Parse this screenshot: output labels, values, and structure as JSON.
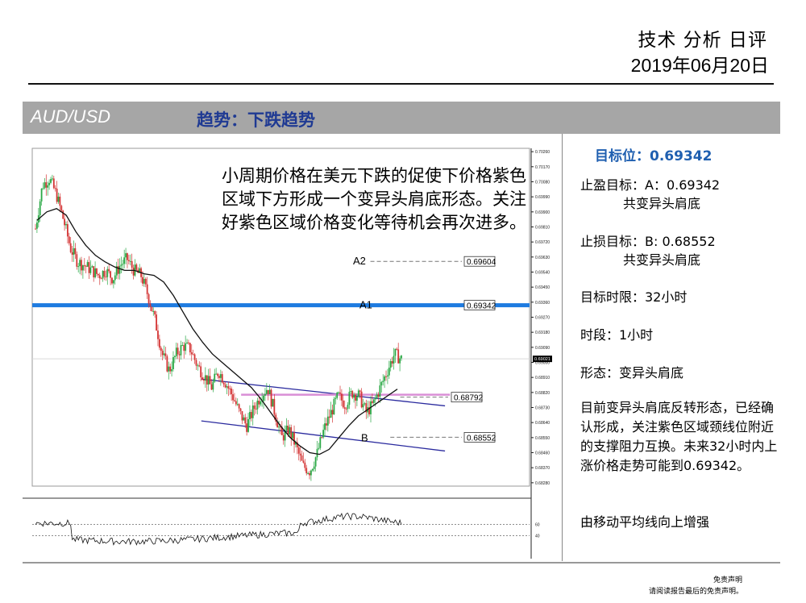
{
  "header": {
    "title": "技术 分析 日评",
    "date": "2019年06月20日"
  },
  "banner": {
    "pair": "AUD/USD",
    "trend": "趋势：下跌趋势"
  },
  "note": "小周期价格在美元下跌的促使下价格紫色区域下方形成一个变异头肩底形态。关注好紫色区域价格变化等待机会再次进多。",
  "panel": {
    "target_price": "目标位：0.69342",
    "take_profit": "止盈目标：A：0.69342",
    "take_profit_sub": "共变异头肩底",
    "stop_loss": "止损目标：B: 0.68552",
    "stop_loss_sub": "共变异头肩底",
    "time_limit": "目标时限：32小时",
    "timeframe": "时段：1小时",
    "pattern": "形态：变异头肩底",
    "description": "目前变异头肩底反转形态，已经确认形成，关注紫色区域颈线位附近的支撑阻力互换。未来32小时内上涨价格走势可能到0.69342。",
    "ma_note": "由移动平均线向上增强"
  },
  "footer": {
    "disclaimer": "免责声明",
    "read_notice": "请阅读报告最后的免责声明。"
  },
  "chart_data": {
    "type": "candlestick",
    "timeframe": "1H",
    "ylim": [
      0.6826,
      0.7028
    ],
    "y_ticks": [
      "0.70260",
      "0.70170",
      "0.70080",
      "0.69990",
      "0.69900",
      "0.69810",
      "0.69720",
      "0.69630",
      "0.69540",
      "0.69450",
      "0.69360",
      "0.69270",
      "0.69180",
      "0.69090",
      "0.69000",
      "0.68910",
      "0.68820",
      "0.68730",
      "0.68640",
      "0.68550",
      "0.68460",
      "0.68370",
      "0.68280"
    ],
    "current_price": "0.69021",
    "levels": [
      {
        "label": "A2",
        "value": 0.69604,
        "text": "0.69604",
        "style": "dashed"
      },
      {
        "label": "A1",
        "value": 0.69342,
        "text": "0.69342",
        "style": "blue-solid"
      },
      {
        "label": "",
        "value": 0.68792,
        "text": "0.68792",
        "style": "purple-neckline"
      },
      {
        "label": "B",
        "value": 0.68552,
        "text": "0.68552",
        "style": "dashed"
      }
    ],
    "price_path": [
      0.698,
      0.7006,
      0.701,
      0.7,
      0.6985,
      0.6968,
      0.696,
      0.6958,
      0.6955,
      0.6952,
      0.6955,
      0.695,
      0.6958,
      0.6962,
      0.6955,
      0.6952,
      0.694,
      0.6925,
      0.6905,
      0.6895,
      0.6905,
      0.691,
      0.6908,
      0.6898,
      0.6892,
      0.6885,
      0.6895,
      0.6888,
      0.688,
      0.687,
      0.6862,
      0.6872,
      0.688,
      0.6885,
      0.687,
      0.6855,
      0.686,
      0.685,
      0.6838,
      0.6835,
      0.6845,
      0.686,
      0.687,
      0.688,
      0.6875,
      0.6882,
      0.688,
      0.687,
      0.6875,
      0.6885,
      0.6895,
      0.6905,
      0.6902
    ],
    "ma_path": [
      0.6985,
      0.699,
      0.6992,
      0.6988,
      0.6978,
      0.697,
      0.6964,
      0.696,
      0.6957,
      0.6955,
      0.6955,
      0.6953,
      0.6952,
      0.6948,
      0.694,
      0.693,
      0.692,
      0.6912,
      0.6905,
      0.69,
      0.6895,
      0.689,
      0.6885,
      0.6878,
      0.687,
      0.6862,
      0.6855,
      0.685,
      0.6846,
      0.6845,
      0.6848,
      0.6855,
      0.6862,
      0.6868,
      0.6872,
      0.6876,
      0.688,
      0.6884
    ],
    "channel_lines": [
      {
        "from": [
          0.689,
          0
        ],
        "to": [
          0.6874,
          1
        ]
      },
      {
        "from": [
          0.6865,
          0
        ],
        "to": [
          0.6847,
          1
        ]
      }
    ],
    "oscillator": {
      "levels": [
        60,
        40
      ],
      "ylim": [
        0,
        100
      ]
    }
  }
}
